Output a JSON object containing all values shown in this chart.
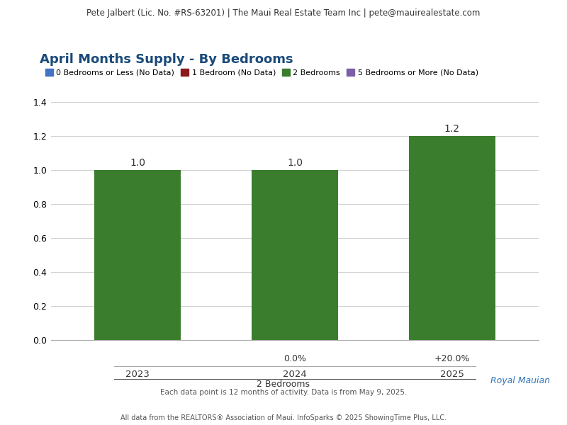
{
  "header_text": "Pete Jalbert (Lic. No. #RS-63201) | The Maui Real Estate Team Inc | pete@mauirealestate.com",
  "title": "April Months Supply - By Bedrooms",
  "legend_entries": [
    {
      "label": "0 Bedrooms or Less (No Data)",
      "color": "#4472c4"
    },
    {
      "label": "1 Bedroom (No Data)",
      "color": "#8B1A1A"
    },
    {
      "label": "2 Bedrooms",
      "color": "#3a7d2c"
    },
    {
      "label": "5 Bedrooms or More (No Data)",
      "color": "#7b5ea7"
    }
  ],
  "years": [
    "2023",
    "2024",
    "2025"
  ],
  "values": [
    1.0,
    1.0,
    1.2
  ],
  "bar_color": "#3a7d2c",
  "pct_changes": [
    "",
    "0.0%",
    "+20.0%"
  ],
  "xlabel_group": "2 Bedrooms",
  "ylim": [
    0,
    1.4
  ],
  "yticks": [
    0.0,
    0.2,
    0.4,
    0.6,
    0.8,
    1.0,
    1.2,
    1.4
  ],
  "footnote_right": "Royal Mauian",
  "footnote_right_color": "#2e75b6",
  "footnote_center": "Each data point is 12 months of activity. Data is from May 9, 2025.",
  "footnote_bottom": "All data from the REALTORS® Association of Maui. InfoSparks © 2025 ShowingTime Plus, LLC.",
  "background_color": "#ffffff",
  "header_bg_color": "#e8e8e8",
  "grid_color": "#d0d0d0",
  "bar_width": 0.55,
  "title_color": "#1a4a7a",
  "header_font_size": 8.5,
  "title_font_size": 13,
  "legend_font_size": 8,
  "bar_label_font_size": 10,
  "tick_font_size": 9,
  "pct_font_size": 9
}
